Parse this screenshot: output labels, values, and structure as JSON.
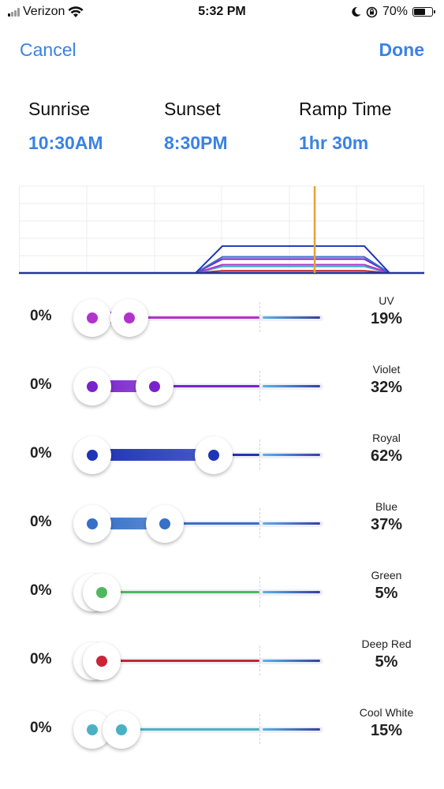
{
  "status_bar": {
    "carrier": "Verizon",
    "time": "5:32 PM",
    "battery": "70%",
    "battery_level": 0.7,
    "icons": [
      "signal-icon",
      "wifi-icon",
      "moon-icon",
      "orientation-lock-icon",
      "battery-icon"
    ]
  },
  "nav": {
    "cancel_label": "Cancel",
    "done_label": "Done"
  },
  "schedule": {
    "sunrise_label": "Sunrise",
    "sunrise_value": "10:30AM",
    "sunset_label": "Sunset",
    "sunset_value": "8:30PM",
    "ramp_label": "Ramp Time",
    "ramp_value": "1hr 30m"
  },
  "channels": [
    {
      "name": "UV",
      "min": "0%",
      "max": "19%",
      "level": 0.19,
      "color": "#b233cc"
    },
    {
      "name": "Violet",
      "min": "0%",
      "max": "32%",
      "level": 0.32,
      "color": "#7a22cc"
    },
    {
      "name": "Royal",
      "min": "0%",
      "max": "62%",
      "level": 0.62,
      "color": "#1f34b8"
    },
    {
      "name": "Blue",
      "min": "0%",
      "max": "37%",
      "level": 0.37,
      "color": "#3670c8"
    },
    {
      "name": "Green",
      "min": "0%",
      "max": "5%",
      "level": 0.05,
      "color": "#4fb85e"
    },
    {
      "name": "Deep Red",
      "min": "0%",
      "max": "5%",
      "level": 0.05,
      "color": "#c82538"
    },
    {
      "name": "Cool White",
      "min": "0%",
      "max": "15%",
      "level": 0.15,
      "color": "#4bb0c4"
    }
  ],
  "colors": {
    "accent": "#3a82e6",
    "current_time_line": "#e8a03a",
    "chart_outline": "#23349c"
  }
}
